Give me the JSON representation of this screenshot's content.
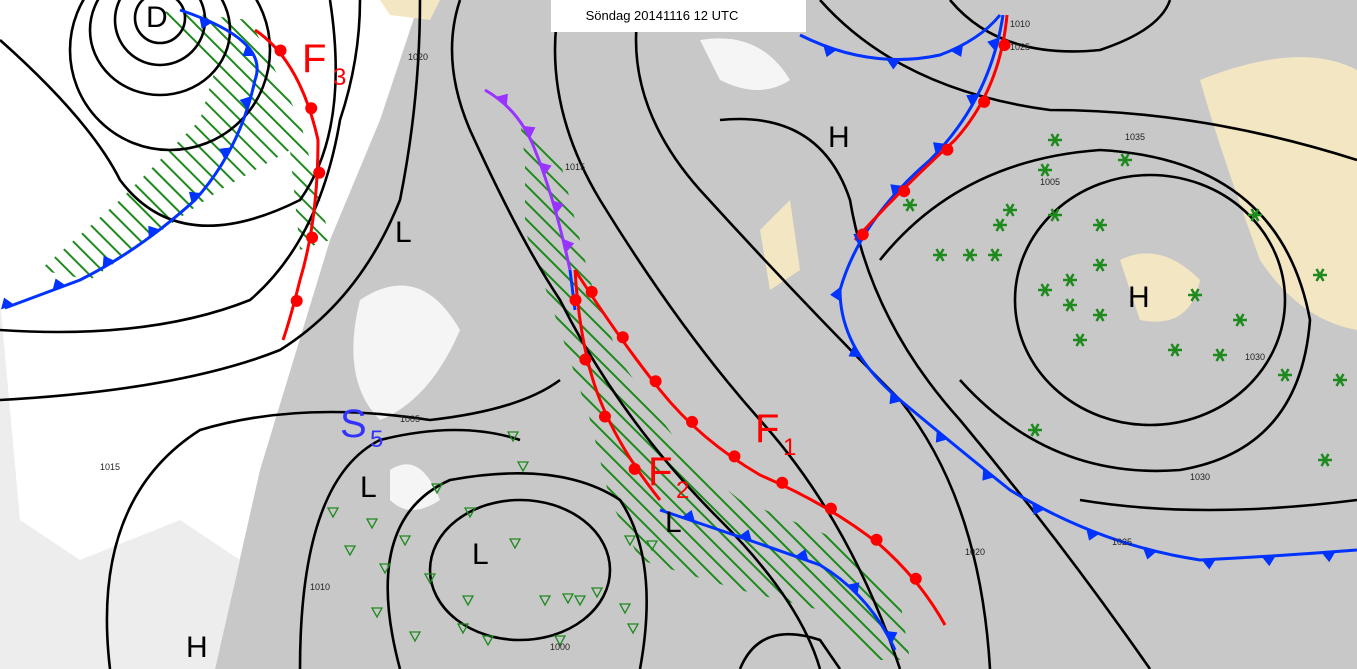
{
  "title": "Söndag 20141116 12 UTC",
  "centers": [
    "D",
    "H",
    "L",
    "H",
    "L",
    "L",
    "H",
    "L"
  ],
  "fronts": [
    {
      "name": "F",
      "number": "3"
    },
    {
      "name": "F",
      "number": "2"
    },
    {
      "name": "F",
      "number": "1"
    }
  ],
  "system": {
    "name": "S",
    "number": "5"
  },
  "isobar_labels": [
    "1005",
    "1010",
    "1015",
    "1020",
    "1025",
    "1030",
    "1035",
    "1000",
    "1005",
    "1010",
    "1015",
    "1020",
    "1025",
    "1030"
  ]
}
